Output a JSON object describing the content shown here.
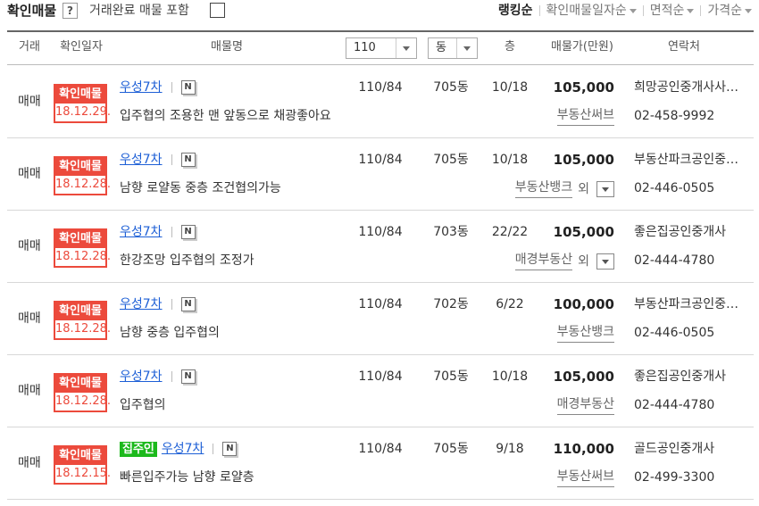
{
  "toolbar": {
    "title": "확인매물",
    "help_icon": "?",
    "checkbox_label": "거래완료 매물 포함",
    "sort_options": [
      "랭킹순",
      "확인매물일자순",
      "면적순",
      "가격순"
    ]
  },
  "table": {
    "headers": {
      "type": "거래",
      "date": "확인일자",
      "name": "매물명",
      "area_select": "110",
      "dong_select": "동",
      "floor": "층",
      "price": "매물가(만원)",
      "contact": "연락처"
    },
    "stamp_label": "확인매물",
    "icon_label": "N",
    "rows": [
      {
        "type": "매매",
        "date": "18.12.29.",
        "name": "우성7차",
        "description": "입주협의 조용한 맨 앞동으로 채광좋아요",
        "area": "110/84",
        "dong": "705동",
        "floor": "10/18",
        "price": "105,000",
        "source": "부동산써브",
        "agency": "희망공인중개사사…",
        "phone": "02-458-9992"
      },
      {
        "type": "매매",
        "date": "18.12.28.",
        "name": "우성7차",
        "description": "남향 로얄동 중층 조건협의가능",
        "area": "110/84",
        "dong": "705동",
        "floor": "10/18",
        "price": "105,000",
        "source": "부동산뱅크",
        "more": "외",
        "agency": "부동산파크공인중…",
        "phone": "02-446-0505"
      },
      {
        "type": "매매",
        "date": "18.12.28.",
        "name": "우성7차",
        "description": "한강조망 입주협의 조정가",
        "area": "110/84",
        "dong": "703동",
        "floor": "22/22",
        "price": "105,000",
        "source": "매경부동산",
        "more": "외",
        "agency": "좋은집공인중개사",
        "phone": "02-444-4780"
      },
      {
        "type": "매매",
        "date": "18.12.28.",
        "name": "우성7차",
        "description": "남향 중층 입주협의",
        "area": "110/84",
        "dong": "702동",
        "floor": "6/22",
        "price": "100,000",
        "source": "부동산뱅크",
        "agency": "부동산파크공인중…",
        "phone": "02-446-0505"
      },
      {
        "type": "매매",
        "date": "18.12.28.",
        "name": "우성7차",
        "description": "입주협의",
        "area": "110/84",
        "dong": "705동",
        "floor": "10/18",
        "price": "105,000",
        "source": "매경부동산",
        "agency": "좋은집공인중개사",
        "phone": "02-444-4780"
      },
      {
        "type": "매매",
        "date": "18.12.15.",
        "tag": "집주인",
        "name": "우성7차",
        "description": "빠른입주가능 남향 로얄층",
        "area": "110/84",
        "dong": "705동",
        "floor": "9/18",
        "price": "110,000",
        "source": "부동산써브",
        "agency": "골드공인중개사",
        "phone": "02-499-3300"
      }
    ]
  }
}
